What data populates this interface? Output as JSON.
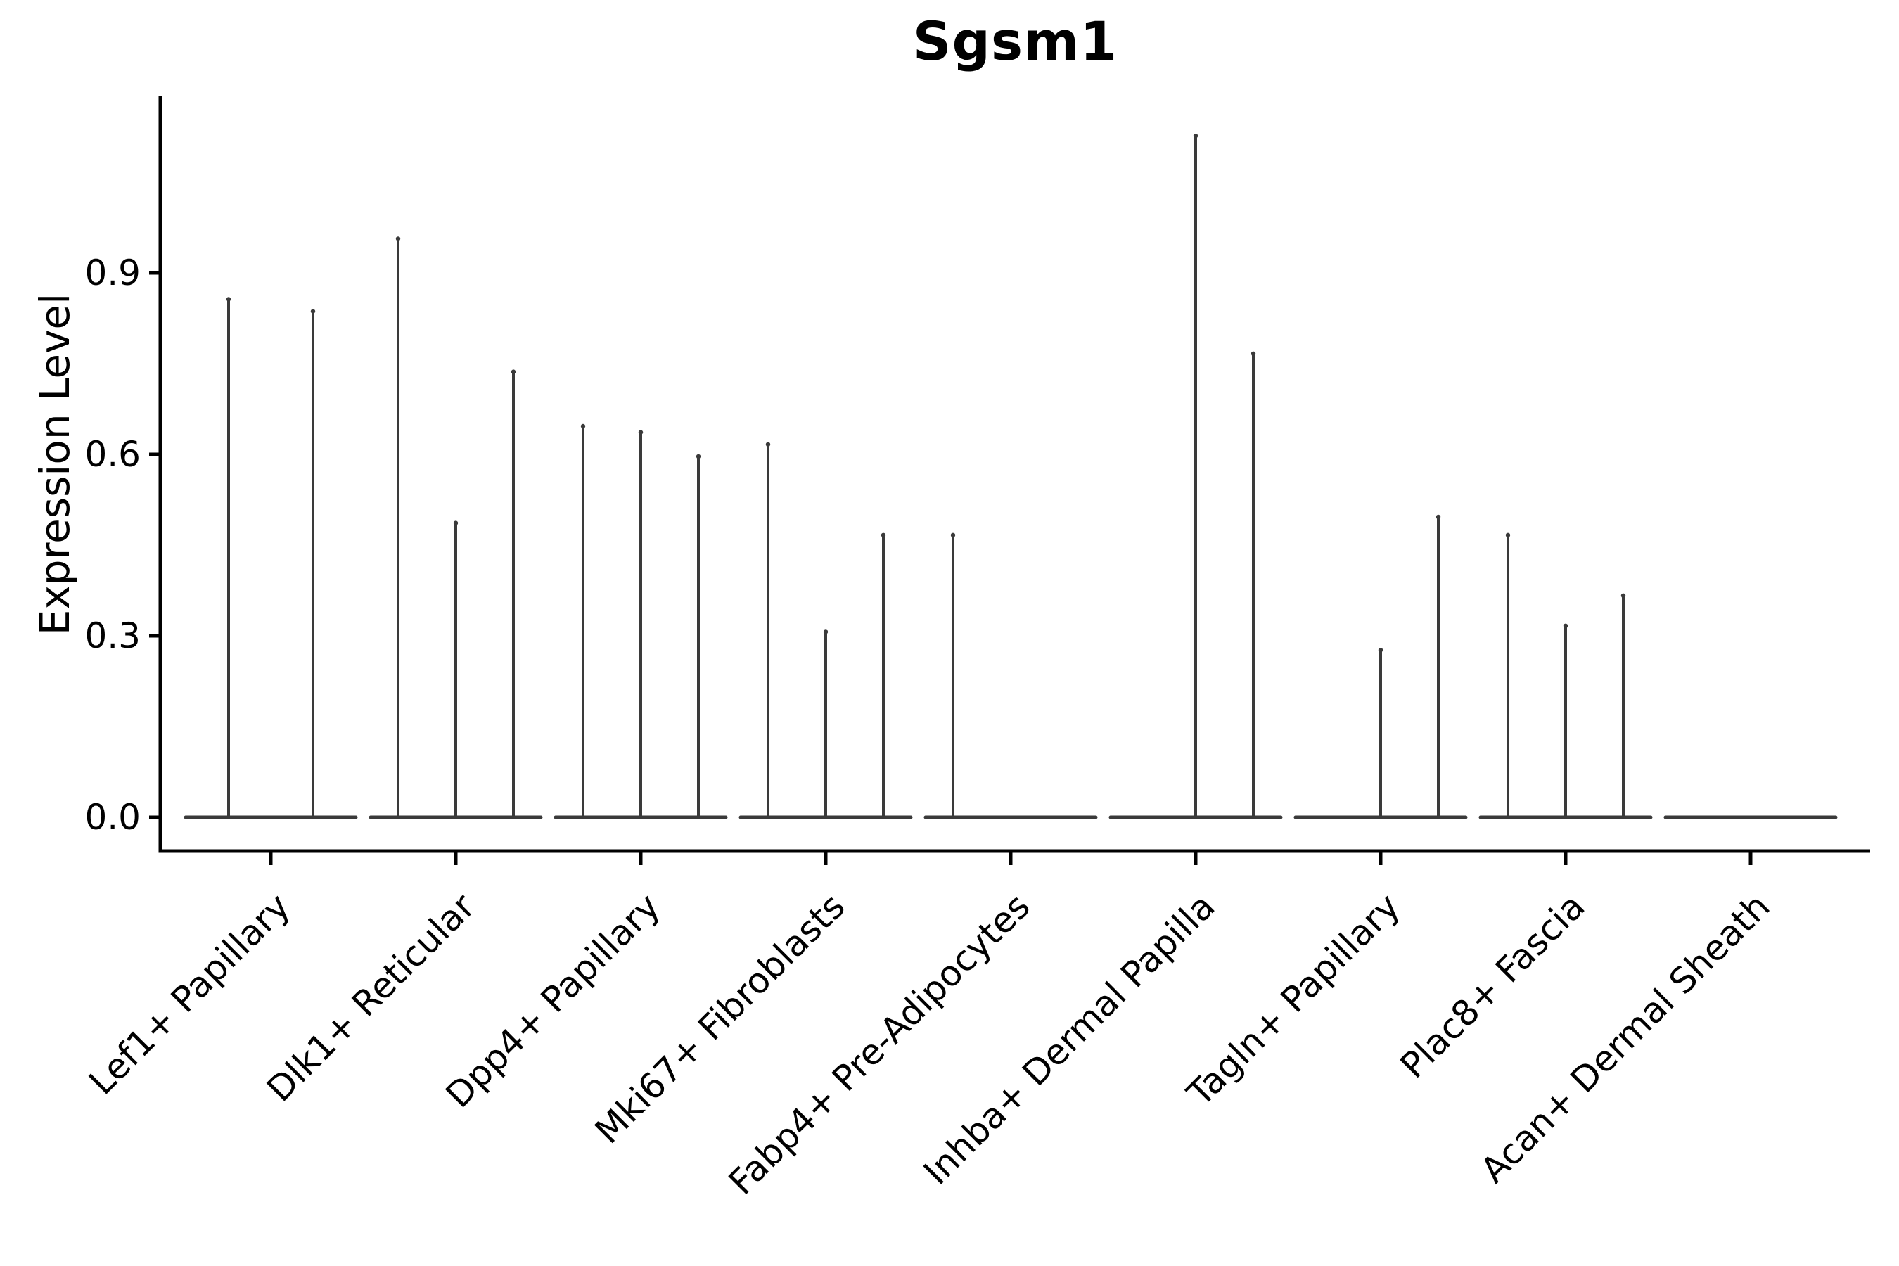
{
  "figure": {
    "title": "Sgsm1",
    "background_color": "#ffffff"
  },
  "chart_data": {
    "type": "violin",
    "title": "Sgsm1",
    "subtitle": "",
    "xlabel": "",
    "ylabel": "Expression Level",
    "ytick_labels": [
      "0.0",
      "0.3",
      "0.6",
      "0.9"
    ],
    "ytick_values": [
      0.0,
      0.3,
      0.6,
      0.9
    ],
    "ylim": [
      0.0,
      1.19
    ],
    "grid": false,
    "legend": null,
    "colors": {
      "violin_stroke": "#3a3a3a",
      "axis": "#000000",
      "tick_text": "#000000",
      "title_text": "#000000"
    },
    "description": "Single-cell expression violin plot; each cluster shows flat near-zero violin bodies with thin spikes reaching the maximum expression value. Sub-violin offset is the horizontal slot within the cluster (px from cluster center).",
    "categories": [
      {
        "label": "Lef1+ Papillary",
        "violins": [
          {
            "offset": -60,
            "max": 0.86
          },
          {
            "offset": 60,
            "max": 0.84
          }
        ]
      },
      {
        "label": "Dlk1+ Reticular",
        "violins": [
          {
            "offset": -82,
            "max": 0.96
          },
          {
            "offset": 0,
            "max": 0.49
          },
          {
            "offset": 82,
            "max": 0.74
          }
        ]
      },
      {
        "label": "Dpp4+ Papillary",
        "violins": [
          {
            "offset": -82,
            "max": 0.65
          },
          {
            "offset": 0,
            "max": 0.64
          },
          {
            "offset": 82,
            "max": 0.6
          }
        ]
      },
      {
        "label": "Mki67+ Fibroblasts",
        "violins": [
          {
            "offset": -82,
            "max": 0.62
          },
          {
            "offset": 0,
            "max": 0.31
          },
          {
            "offset": 82,
            "max": 0.47
          }
        ]
      },
      {
        "label": "Fabp4+ Pre-Adipocytes",
        "violins": [
          {
            "offset": -82,
            "max": 0.47
          }
        ]
      },
      {
        "label": "Inhba+ Dermal Papilla",
        "violins": [
          {
            "offset": 0,
            "max": 1.13
          },
          {
            "offset": 82,
            "max": 0.77
          }
        ]
      },
      {
        "label": "Tagln+ Papillary",
        "violins": [
          {
            "offset": 0,
            "max": 0.28
          },
          {
            "offset": 82,
            "max": 0.5
          }
        ]
      },
      {
        "label": "Plac8+ Fascia",
        "violins": [
          {
            "offset": -82,
            "max": 0.47
          },
          {
            "offset": 0,
            "max": 0.32
          },
          {
            "offset": 82,
            "max": 0.37
          }
        ]
      },
      {
        "label": "Acan+ Dermal Sheath",
        "violins": []
      }
    ]
  }
}
